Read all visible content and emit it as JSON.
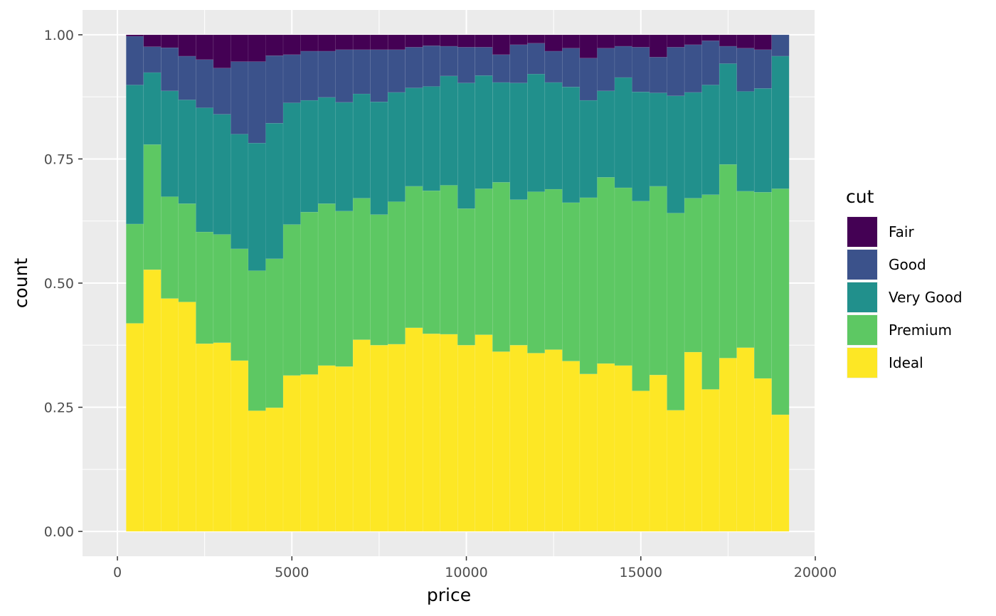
{
  "chart_data": {
    "type": "bar",
    "position": "fill",
    "xlabel": "price",
    "ylabel": "count",
    "xlim": [
      -1000,
      20000
    ],
    "ylim": [
      -0.05,
      1.05
    ],
    "x_ticks": [
      0,
      5000,
      10000,
      15000,
      20000
    ],
    "x_tick_labels": [
      "0",
      "5000",
      "10000",
      "15000",
      "20000"
    ],
    "y_ticks": [
      0,
      0.25,
      0.5,
      0.75,
      1.0
    ],
    "y_tick_labels": [
      "0.00",
      "0.25",
      "0.50",
      "0.75",
      "1.00"
    ],
    "bin_width": 500,
    "bin_starts": [
      250,
      750,
      1250,
      1750,
      2250,
      2750,
      3250,
      3750,
      4250,
      4750,
      5250,
      5750,
      6250,
      6750,
      7250,
      7750,
      8250,
      8750,
      9250,
      9750,
      10250,
      10750,
      11250,
      11750,
      12250,
      12750,
      13250,
      13750,
      14250,
      14750,
      15250,
      15750,
      16250,
      16750,
      17250,
      17750,
      18250,
      18750
    ],
    "grid": true,
    "legend_title": "cut",
    "legend_position": "right",
    "series": [
      {
        "name": "Fair",
        "color": "#440154",
        "values": [
          0.003,
          0.024,
          0.026,
          0.043,
          0.05,
          0.067,
          0.054,
          0.054,
          0.042,
          0.04,
          0.033,
          0.033,
          0.03,
          0.03,
          0.03,
          0.03,
          0.025,
          0.022,
          0.023,
          0.025,
          0.025,
          0.04,
          0.02,
          0.017,
          0.033,
          0.027,
          0.047,
          0.027,
          0.023,
          0.025,
          0.045,
          0.025,
          0.02,
          0.012,
          0.023,
          0.027,
          0.03,
          0.0
        ]
      },
      {
        "name": "Good",
        "color": "#3b528b",
        "values": [
          0.098,
          0.052,
          0.087,
          0.088,
          0.097,
          0.093,
          0.146,
          0.164,
          0.136,
          0.097,
          0.099,
          0.093,
          0.106,
          0.089,
          0.105,
          0.086,
          0.082,
          0.082,
          0.06,
          0.072,
          0.057,
          0.056,
          0.077,
          0.062,
          0.063,
          0.078,
          0.085,
          0.086,
          0.063,
          0.09,
          0.072,
          0.098,
          0.096,
          0.089,
          0.035,
          0.087,
          0.078,
          0.043
        ]
      },
      {
        "name": "Very Good",
        "color": "#21908c",
        "values": [
          0.28,
          0.145,
          0.213,
          0.209,
          0.25,
          0.242,
          0.231,
          0.257,
          0.273,
          0.245,
          0.225,
          0.214,
          0.219,
          0.21,
          0.227,
          0.22,
          0.198,
          0.21,
          0.22,
          0.253,
          0.228,
          0.201,
          0.235,
          0.237,
          0.215,
          0.233,
          0.196,
          0.174,
          0.222,
          0.22,
          0.188,
          0.236,
          0.213,
          0.221,
          0.203,
          0.201,
          0.209,
          0.267
        ]
      },
      {
        "name": "Premium",
        "color": "#5dc863",
        "values": [
          0.2,
          0.252,
          0.205,
          0.198,
          0.225,
          0.218,
          0.225,
          0.282,
          0.3,
          0.304,
          0.327,
          0.326,
          0.313,
          0.285,
          0.263,
          0.287,
          0.285,
          0.288,
          0.3,
          0.275,
          0.294,
          0.341,
          0.293,
          0.325,
          0.323,
          0.319,
          0.355,
          0.375,
          0.358,
          0.382,
          0.38,
          0.397,
          0.31,
          0.392,
          0.39,
          0.315,
          0.375,
          0.455
        ]
      },
      {
        "name": "Ideal",
        "color": "#fde725",
        "values": [
          0.419,
          0.527,
          0.469,
          0.462,
          0.378,
          0.38,
          0.344,
          0.243,
          0.249,
          0.314,
          0.316,
          0.334,
          0.332,
          0.386,
          0.375,
          0.377,
          0.41,
          0.398,
          0.397,
          0.375,
          0.396,
          0.362,
          0.375,
          0.359,
          0.366,
          0.343,
          0.317,
          0.338,
          0.334,
          0.283,
          0.315,
          0.244,
          0.361,
          0.286,
          0.349,
          0.37,
          0.308,
          0.235
        ]
      }
    ]
  }
}
